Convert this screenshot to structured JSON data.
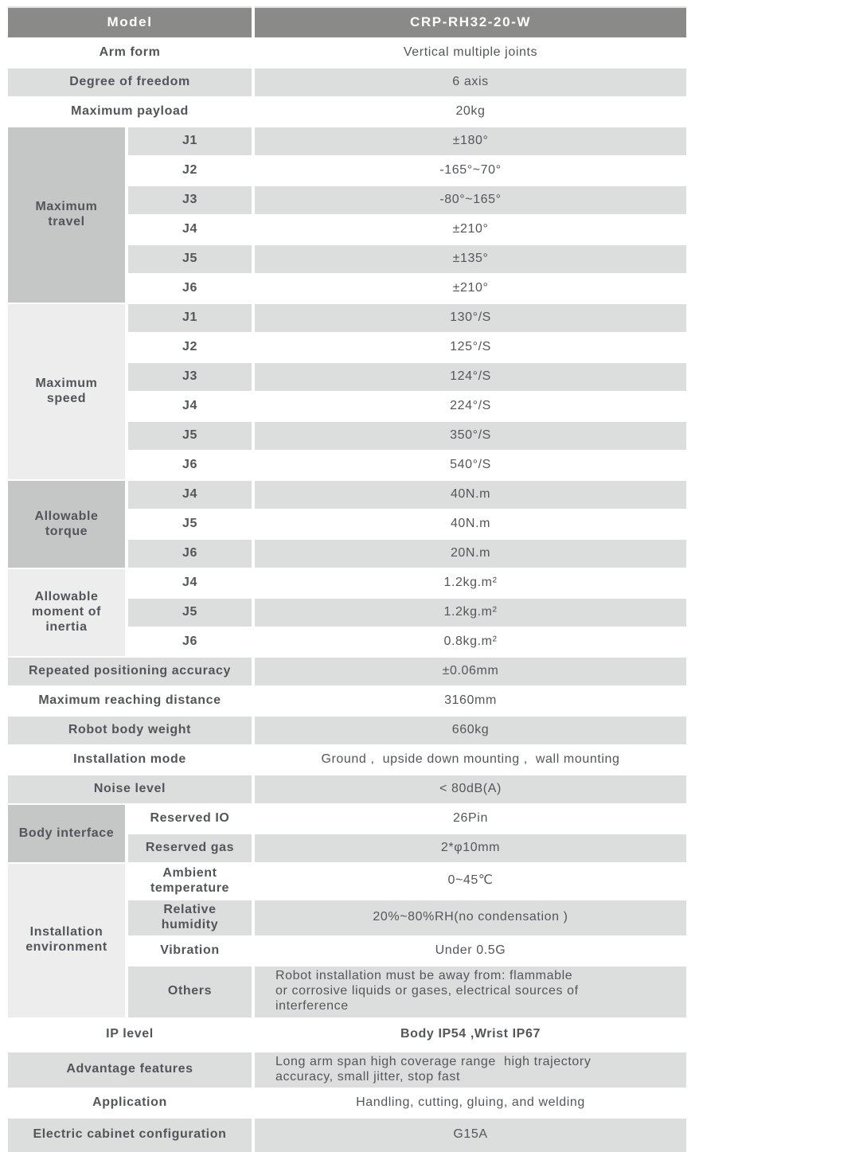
{
  "header": {
    "model_label": "Model",
    "model_value": "CRP-RH32-20-W"
  },
  "simple": {
    "arm_form": {
      "label": "Arm form",
      "value": "Vertical multiple joints"
    },
    "dof": {
      "label": "Degree of freedom",
      "value": "6 axis"
    },
    "payload": {
      "label": "Maximum payload",
      "value": "20kg"
    },
    "accuracy": {
      "label": "Repeated positioning accuracy",
      "value": "±0.06mm"
    },
    "reach": {
      "label": "Maximum reaching distance",
      "value": "3160mm"
    },
    "weight": {
      "label": "Robot body weight",
      "value": "660kg"
    },
    "install_mode": {
      "label": "Installation mode",
      "value": "Ground ,  upside down mounting ,  wall mounting"
    },
    "noise": {
      "label": "Noise level",
      "value": "< 80dB(A)"
    },
    "ip": {
      "label": "IP level",
      "value": "Body IP54 ,Wrist IP67"
    },
    "advantage": {
      "label": "Advantage features",
      "value": "Long arm span high coverage range  high trajectory\naccuracy, small jitter, stop fast"
    },
    "application": {
      "label": "Application",
      "value": "Handling, cutting, gluing, and welding"
    },
    "cabinet": {
      "label": "Electric cabinet configuration",
      "value": "G15A"
    }
  },
  "groups": {
    "travel": {
      "label": "Maximum travel",
      "joints": [
        {
          "name": "J1",
          "value": "±180°"
        },
        {
          "name": "J2",
          "value": "-165°~70°"
        },
        {
          "name": "J3",
          "value": "-80°~165°"
        },
        {
          "name": "J4",
          "value": "±210°"
        },
        {
          "name": "J5",
          "value": "±135°"
        },
        {
          "name": "J6",
          "value": "±210°"
        }
      ]
    },
    "speed": {
      "label": "Maximum speed",
      "joints": [
        {
          "name": "J1",
          "value": "130°/S"
        },
        {
          "name": "J2",
          "value": "125°/S"
        },
        {
          "name": "J3",
          "value": "124°/S"
        },
        {
          "name": "J4",
          "value": "224°/S"
        },
        {
          "name": "J5",
          "value": "350°/S"
        },
        {
          "name": "J6",
          "value": "540°/S"
        }
      ]
    },
    "torque": {
      "label": "Allowable torque",
      "joints": [
        {
          "name": "J4",
          "value": "40N.m"
        },
        {
          "name": "J5",
          "value": "40N.m"
        },
        {
          "name": "J6",
          "value": "20N.m"
        }
      ]
    },
    "inertia": {
      "label": "Allowable moment of inertia",
      "joints": [
        {
          "name": "J4",
          "value": "1.2kg.m²"
        },
        {
          "name": "J5",
          "value": "1.2kg.m²"
        },
        {
          "name": "J6",
          "value": "0.8kg.m²"
        }
      ]
    },
    "interface": {
      "label": "Body interface",
      "items": [
        {
          "name": "Reserved IO",
          "value": "26Pin"
        },
        {
          "name": "Reserved gas",
          "value": "2*φ10mm"
        }
      ]
    },
    "environment": {
      "label": "Installation environment",
      "items": [
        {
          "name": "Ambient temperature",
          "value": "0~45℃"
        },
        {
          "name": "Relative humidity",
          "value": "20%~80%RH(no condensation )"
        },
        {
          "name": "Vibration",
          "value": "Under 0.5G"
        },
        {
          "name": "Others",
          "value": "Robot installation must be away from: flammable\nor corrosive liquids or gases, electrical sources of\ninterference"
        }
      ]
    }
  },
  "colors": {
    "header_bg": "#8a8a89",
    "row_gray": "#dcdddd",
    "group_dark": "#c5c6c6",
    "group_light": "#ededee",
    "text": "#54565b"
  }
}
